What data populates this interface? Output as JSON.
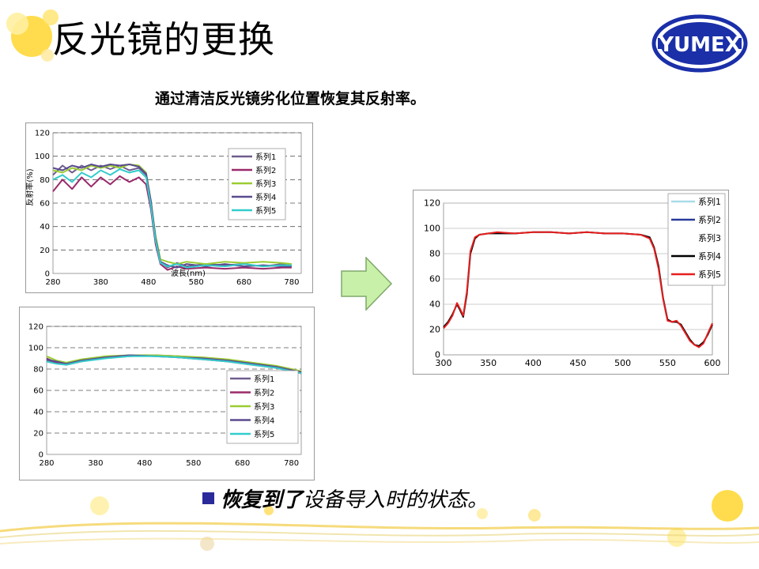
{
  "slide": {
    "title": "反光镜的更换",
    "subtitle": "通过清洁反光镜劣化位置恢复其反射率。",
    "logo_text": "YUMEX",
    "bottom": {
      "part_bold": "恢复到了",
      "part_rest": "设备导入时的状态。"
    },
    "colors": {
      "logo_blue": "#1a2fa8",
      "arrow_fill": "#c8f0a8",
      "bullet": "#2a2a9a"
    }
  },
  "chart_data": [
    {
      "type": "line",
      "id": "top-left",
      "xlabel": "波長(nm)",
      "ylabel": "反射率(%)",
      "xlim": [
        280,
        800
      ],
      "ylim": [
        0,
        120
      ],
      "x_ticks": [
        "280",
        "380",
        "480",
        "580",
        "680",
        "780"
      ],
      "y_ticks": [
        "0",
        "20",
        "40",
        "60",
        "80",
        "100",
        "120"
      ],
      "grid": true,
      "legend": "right",
      "series": [
        {
          "name": "系列1",
          "color": "#6f5d8e",
          "values": [
            [
              280,
              84
            ],
            [
              300,
              92
            ],
            [
              320,
              86
            ],
            [
              340,
              92
            ],
            [
              360,
              88
            ],
            [
              380,
              92
            ],
            [
              400,
              89
            ],
            [
              420,
              92
            ],
            [
              440,
              88
            ],
            [
              460,
              90
            ],
            [
              475,
              84
            ],
            [
              485,
              60
            ],
            [
              495,
              30
            ],
            [
              505,
              10
            ],
            [
              520,
              5
            ],
            [
              540,
              9
            ],
            [
              560,
              6
            ],
            [
              600,
              8
            ],
            [
              640,
              7
            ],
            [
              680,
              8
            ],
            [
              720,
              6
            ],
            [
              760,
              8
            ],
            [
              780,
              7
            ]
          ]
        },
        {
          "name": "系列2",
          "color": "#9a2a6a",
          "values": [
            [
              280,
              70
            ],
            [
              300,
              80
            ],
            [
              320,
              72
            ],
            [
              340,
              82
            ],
            [
              360,
              74
            ],
            [
              380,
              82
            ],
            [
              400,
              76
            ],
            [
              420,
              83
            ],
            [
              440,
              78
            ],
            [
              460,
              82
            ],
            [
              475,
              76
            ],
            [
              485,
              55
            ],
            [
              495,
              25
            ],
            [
              505,
              8
            ],
            [
              520,
              3
            ],
            [
              540,
              6
            ],
            [
              560,
              4
            ],
            [
              600,
              5
            ],
            [
              640,
              4
            ],
            [
              680,
              5
            ],
            [
              720,
              4
            ],
            [
              760,
              5
            ],
            [
              780,
              5
            ]
          ]
        },
        {
          "name": "系列3",
          "color": "#9acd32",
          "values": [
            [
              280,
              88
            ],
            [
              300,
              86
            ],
            [
              320,
              90
            ],
            [
              340,
              88
            ],
            [
              360,
              92
            ],
            [
              380,
              90
            ],
            [
              400,
              92
            ],
            [
              420,
              90
            ],
            [
              440,
              93
            ],
            [
              460,
              92
            ],
            [
              475,
              86
            ],
            [
              485,
              62
            ],
            [
              495,
              32
            ],
            [
              505,
              12
            ],
            [
              520,
              10
            ],
            [
              540,
              8
            ],
            [
              560,
              10
            ],
            [
              600,
              8
            ],
            [
              640,
              10
            ],
            [
              680,
              9
            ],
            [
              720,
              10
            ],
            [
              760,
              9
            ],
            [
              780,
              8
            ]
          ]
        },
        {
          "name": "系列4",
          "color": "#5a4a8e",
          "values": [
            [
              280,
              90
            ],
            [
              300,
              88
            ],
            [
              320,
              92
            ],
            [
              340,
              90
            ],
            [
              360,
              93
            ],
            [
              380,
              91
            ],
            [
              400,
              93
            ],
            [
              420,
              92
            ],
            [
              440,
              93
            ],
            [
              460,
              91
            ],
            [
              475,
              85
            ],
            [
              485,
              62
            ],
            [
              495,
              30
            ],
            [
              505,
              10
            ],
            [
              520,
              7
            ],
            [
              540,
              5
            ],
            [
              560,
              8
            ],
            [
              600,
              6
            ],
            [
              640,
              8
            ],
            [
              680,
              6
            ],
            [
              720,
              7
            ],
            [
              760,
              6
            ],
            [
              780,
              6
            ]
          ]
        },
        {
          "name": "系列5",
          "color": "#33cccc",
          "values": [
            [
              280,
              80
            ],
            [
              300,
              84
            ],
            [
              320,
              78
            ],
            [
              340,
              86
            ],
            [
              360,
              82
            ],
            [
              380,
              88
            ],
            [
              400,
              84
            ],
            [
              420,
              89
            ],
            [
              440,
              86
            ],
            [
              460,
              88
            ],
            [
              475,
              82
            ],
            [
              485,
              58
            ],
            [
              495,
              28
            ],
            [
              505,
              9
            ],
            [
              520,
              6
            ],
            [
              540,
              8
            ],
            [
              560,
              5
            ],
            [
              600,
              7
            ],
            [
              640,
              6
            ],
            [
              680,
              8
            ],
            [
              720,
              6
            ],
            [
              760,
              7
            ],
            [
              780,
              7
            ]
          ]
        }
      ]
    },
    {
      "type": "line",
      "id": "bottom-left",
      "xlim": [
        280,
        800
      ],
      "ylim": [
        0,
        120
      ],
      "x_ticks": [
        "280",
        "380",
        "480",
        "580",
        "680",
        "780"
      ],
      "y_ticks": [
        "0",
        "20",
        "40",
        "60",
        "80",
        "100",
        "120"
      ],
      "grid": true,
      "legend": "right",
      "series": [
        {
          "name": "系列1",
          "color": "#6f5d8e",
          "values": [
            [
              280,
              88
            ],
            [
              300,
              86
            ],
            [
              320,
              85
            ],
            [
              350,
              88
            ],
            [
              400,
              91
            ],
            [
              450,
              93
            ],
            [
              500,
              93
            ],
            [
              550,
              92
            ],
            [
              600,
              90
            ],
            [
              650,
              88
            ],
            [
              700,
              85
            ],
            [
              750,
              82
            ],
            [
              780,
              79
            ],
            [
              800,
              77
            ]
          ]
        },
        {
          "name": "系列2",
          "color": "#9a2a6a",
          "values": [
            [
              280,
              90
            ],
            [
              300,
              86
            ],
            [
              320,
              84
            ],
            [
              350,
              87
            ],
            [
              400,
              91
            ],
            [
              450,
              92
            ],
            [
              500,
              93
            ],
            [
              550,
              91
            ],
            [
              600,
              89
            ],
            [
              650,
              87
            ],
            [
              700,
              84
            ],
            [
              750,
              81
            ],
            [
              780,
              78
            ],
            [
              800,
              76
            ]
          ]
        },
        {
          "name": "系列3",
          "color": "#9acd32",
          "values": [
            [
              280,
              92
            ],
            [
              300,
              88
            ],
            [
              320,
              86
            ],
            [
              350,
              89
            ],
            [
              400,
              92
            ],
            [
              450,
              93
            ],
            [
              500,
              93
            ],
            [
              550,
              92
            ],
            [
              600,
              91
            ],
            [
              650,
              89
            ],
            [
              700,
              86
            ],
            [
              750,
              83
            ],
            [
              780,
              80
            ],
            [
              800,
              78
            ]
          ]
        },
        {
          "name": "系列4",
          "color": "#5a4a8e",
          "values": [
            [
              280,
              89
            ],
            [
              300,
              87
            ],
            [
              320,
              85
            ],
            [
              350,
              88
            ],
            [
              400,
              91
            ],
            [
              450,
              93
            ],
            [
              500,
              92
            ],
            [
              550,
              91
            ],
            [
              600,
              90
            ],
            [
              650,
              88
            ],
            [
              700,
              85
            ],
            [
              750,
              82
            ],
            [
              780,
              79
            ],
            [
              800,
              77
            ]
          ]
        },
        {
          "name": "系列5",
          "color": "#33cccc",
          "values": [
            [
              280,
              87
            ],
            [
              300,
              85
            ],
            [
              320,
              84
            ],
            [
              350,
              87
            ],
            [
              400,
              90
            ],
            [
              450,
              92
            ],
            [
              500,
              92
            ],
            [
              550,
              91
            ],
            [
              600,
              89
            ],
            [
              650,
              87
            ],
            [
              700,
              84
            ],
            [
              750,
              81
            ],
            [
              780,
              78
            ],
            [
              800,
              76
            ]
          ]
        }
      ]
    },
    {
      "type": "line",
      "id": "right",
      "xlim": [
        300,
        600
      ],
      "ylim": [
        0,
        120
      ],
      "x_ticks": [
        "300",
        "350",
        "400",
        "450",
        "500",
        "550",
        "600"
      ],
      "y_ticks": [
        "0",
        "20",
        "40",
        "60",
        "80",
        "100",
        "120"
      ],
      "grid": true,
      "legend": "right",
      "series": [
        {
          "name": "系列1",
          "color": "#a8dce8",
          "values": []
        },
        {
          "name": "系列2",
          "color": "#2a3a9a",
          "values": []
        },
        {
          "name": "系列3",
          "color": "#ffffff",
          "values": []
        },
        {
          "name": "系列4",
          "color": "#000000",
          "values": [
            [
              300,
              22
            ],
            [
              305,
              26
            ],
            [
              310,
              32
            ],
            [
              315,
              40
            ],
            [
              318,
              36
            ],
            [
              322,
              30
            ],
            [
              326,
              48
            ],
            [
              330,
              80
            ],
            [
              335,
              92
            ],
            [
              340,
              95
            ],
            [
              350,
              96
            ],
            [
              360,
              96
            ],
            [
              380,
              96
            ],
            [
              400,
              97
            ],
            [
              420,
              97
            ],
            [
              440,
              96
            ],
            [
              460,
              97
            ],
            [
              480,
              96
            ],
            [
              500,
              96
            ],
            [
              520,
              95
            ],
            [
              530,
              93
            ],
            [
              535,
              85
            ],
            [
              540,
              70
            ],
            [
              545,
              45
            ],
            [
              550,
              28
            ],
            [
              555,
              26
            ],
            [
              560,
              26
            ],
            [
              565,
              24
            ],
            [
              570,
              18
            ],
            [
              575,
              12
            ],
            [
              580,
              8
            ],
            [
              585,
              7
            ],
            [
              590,
              10
            ],
            [
              595,
              16
            ],
            [
              600,
              24
            ]
          ]
        },
        {
          "name": "系列5",
          "color": "#e61e1e",
          "values": [
            [
              300,
              21
            ],
            [
              305,
              25
            ],
            [
              310,
              31
            ],
            [
              315,
              41
            ],
            [
              318,
              37
            ],
            [
              322,
              31
            ],
            [
              326,
              50
            ],
            [
              330,
              82
            ],
            [
              335,
              93
            ],
            [
              340,
              95
            ],
            [
              350,
              96
            ],
            [
              360,
              97
            ],
            [
              380,
              96
            ],
            [
              400,
              97
            ],
            [
              420,
              97
            ],
            [
              440,
              96
            ],
            [
              460,
              97
            ],
            [
              480,
              96
            ],
            [
              500,
              96
            ],
            [
              520,
              95
            ],
            [
              530,
              92
            ],
            [
              535,
              84
            ],
            [
              540,
              68
            ],
            [
              545,
              44
            ],
            [
              550,
              27
            ],
            [
              555,
              26
            ],
            [
              560,
              27
            ],
            [
              565,
              23
            ],
            [
              570,
              17
            ],
            [
              575,
              11
            ],
            [
              580,
              8
            ],
            [
              585,
              6
            ],
            [
              590,
              9
            ],
            [
              595,
              17
            ],
            [
              600,
              25
            ]
          ]
        }
      ]
    }
  ]
}
